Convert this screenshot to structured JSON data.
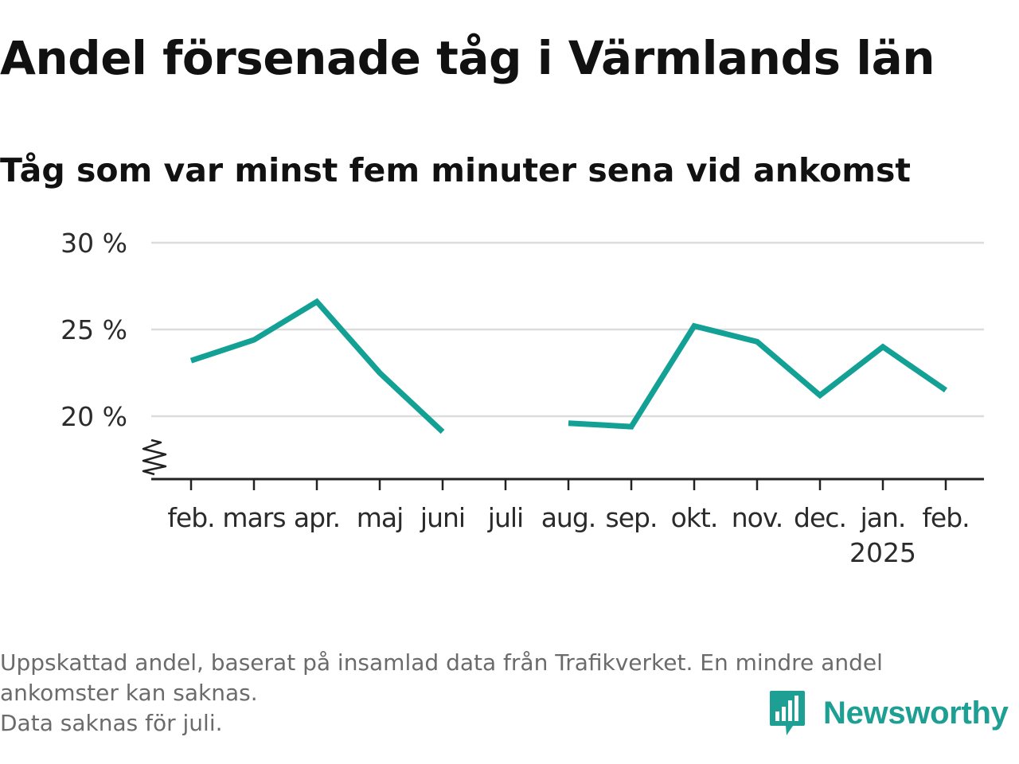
{
  "header": {
    "title": "Andel försenade tåg i Värmlands län",
    "subtitle": "Tåg som var minst fem minuter sena vid ankomst"
  },
  "chart_data": {
    "type": "line",
    "title": "Andel försenade tåg i Värmlands län",
    "subtitle": "Tåg som var minst fem minuter sena vid ankomst",
    "xlabel": "",
    "ylabel": "",
    "categories": [
      "feb.",
      "mars",
      "apr.",
      "maj",
      "juni",
      "juli",
      "aug.",
      "sep.",
      "okt.",
      "nov.",
      "dec.",
      "jan.",
      "feb."
    ],
    "year_label": "2025",
    "year_label_index": 11,
    "series": [
      {
        "values": [
          23.2,
          24.4,
          26.6,
          22.5,
          19.1,
          null,
          19.6,
          19.4,
          25.2,
          24.3,
          21.2,
          24.0,
          21.5
        ],
        "color": "#13a095"
      }
    ],
    "y_ticks": [
      20,
      25,
      30
    ],
    "y_tick_labels": [
      "20 %",
      "25 %",
      "30 %"
    ],
    "ylim": [
      16.5,
      30
    ],
    "y_axis_break": true,
    "grid": "horizontal",
    "legend": "none"
  },
  "footnote": {
    "lines": [
      "Uppskattad andel, baserat på insamlad data från Trafikverket. En mindre andel",
      "ankomster kan saknas.",
      "Data saknas för juli."
    ]
  },
  "brand": {
    "name": "Newsworthy",
    "icon": "newsworthy-logo-icon",
    "color": "#1e9f94"
  }
}
